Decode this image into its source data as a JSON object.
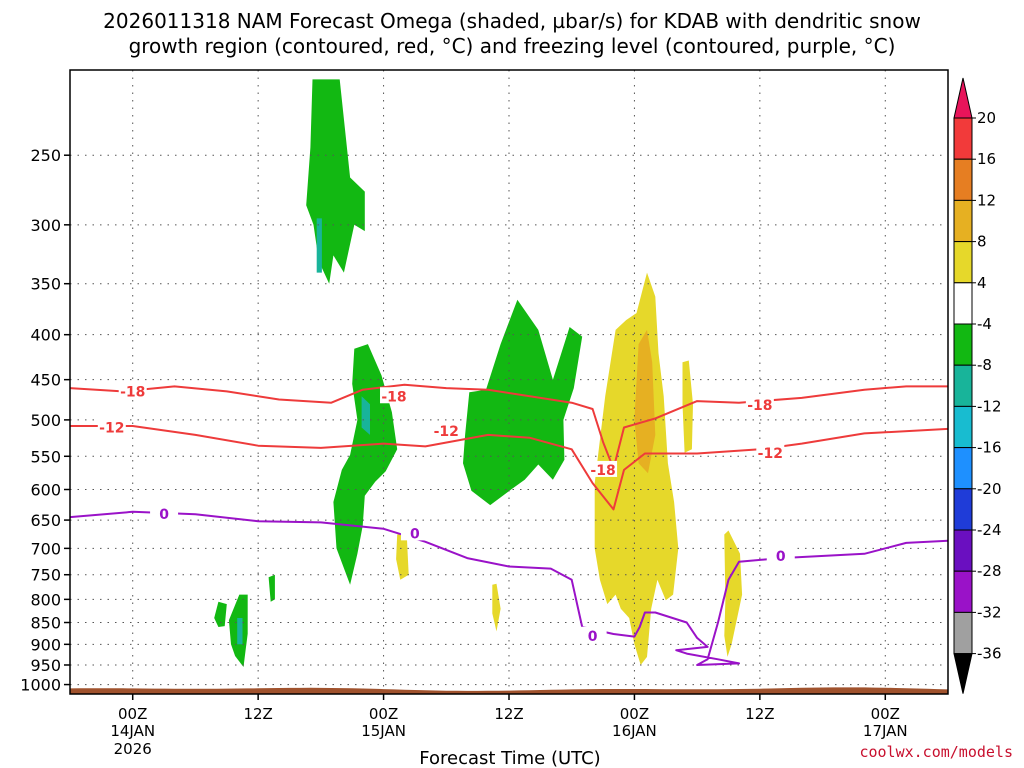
{
  "title": {
    "line1": "2026011318 NAM Forecast Omega (shaded, µbar/s) for KDAB with dendritic snow",
    "line2": "growth region (contoured, red, °C) and freezing level (contoured, purple, °C)"
  },
  "credit": "coolwx.com/models",
  "colors": {
    "contour_red": "#ee3b3b",
    "contour_purple": "#9a12c8",
    "terrain": "#a0522d",
    "grid": "#555555"
  },
  "chart_data": {
    "type": "heatmap",
    "ylabel": "",
    "xlabel": "Forecast Time (UTC)",
    "y_scale": "log-pressure",
    "y_ticks": [
      "250",
      "300",
      "350",
      "400",
      "450",
      "500",
      "550",
      "600",
      "650",
      "700",
      "750",
      "800",
      "850",
      "900",
      "950",
      "1000"
    ],
    "x_ticks": [
      {
        "hour": 6,
        "label": "00Z",
        "date": "14JAN",
        "year": "2026"
      },
      {
        "hour": 18,
        "label": "12Z",
        "date": "",
        "year": ""
      },
      {
        "hour": 30,
        "label": "00Z",
        "date": "15JAN",
        "year": ""
      },
      {
        "hour": 42,
        "label": "12Z",
        "date": "",
        "year": ""
      },
      {
        "hour": 54,
        "label": "00Z",
        "date": "16JAN",
        "year": ""
      },
      {
        "hour": 66,
        "label": "12Z",
        "date": "",
        "year": ""
      },
      {
        "hour": 78,
        "label": "00Z",
        "date": "17JAN",
        "year": ""
      }
    ],
    "x_range_hours": [
      0,
      84
    ],
    "y_range_hPa": [
      200,
      1025
    ],
    "colorbar": {
      "labels": [
        "20",
        "16",
        "12",
        "8",
        "4",
        "-4",
        "-8",
        "-12",
        "-16",
        "-20",
        "-24",
        "-28",
        "-32",
        "-36"
      ],
      "colors": [
        "#e8145a",
        "#f23a3a",
        "#e67e22",
        "#e6b022",
        "#e6d82a",
        "#ffffff",
        "#12b812",
        "#18b49a",
        "#18bcd0",
        "#1e90ff",
        "#1f3cd8",
        "#6a0fc0",
        "#9a12c8",
        "#a0a0a0",
        "#000000"
      ]
    },
    "contours": [
      {
        "name": "-18",
        "color": "#ee3b3b",
        "points": [
          [
            0,
            460
          ],
          [
            5,
            464
          ],
          [
            10,
            458
          ],
          [
            15,
            464
          ],
          [
            20,
            474
          ],
          [
            25,
            478
          ],
          [
            28,
            462
          ],
          [
            32,
            456
          ],
          [
            36,
            460
          ],
          [
            40,
            462
          ],
          [
            44,
            470
          ],
          [
            48,
            478
          ],
          [
            50,
            486
          ],
          [
            51,
            530
          ],
          [
            52,
            568
          ],
          [
            53,
            510
          ],
          [
            56,
            498
          ],
          [
            60,
            476
          ],
          [
            64,
            478
          ],
          [
            70,
            472
          ],
          [
            76,
            462
          ],
          [
            80,
            458
          ],
          [
            84,
            458
          ]
        ],
        "labels": [
          [
            6,
            464,
            "-18"
          ],
          [
            31,
            470,
            "-18"
          ],
          [
            66,
            481,
            "-18"
          ],
          [
            51,
            570,
            "-18"
          ]
        ]
      },
      {
        "name": "-12",
        "color": "#ee3b3b",
        "points": [
          [
            0,
            508
          ],
          [
            6,
            508
          ],
          [
            12,
            520
          ],
          [
            18,
            535
          ],
          [
            24,
            538
          ],
          [
            30,
            532
          ],
          [
            34,
            536
          ],
          [
            40,
            520
          ],
          [
            44,
            524
          ],
          [
            48,
            540
          ],
          [
            50,
            590
          ],
          [
            52,
            632
          ],
          [
            53,
            570
          ],
          [
            55,
            546
          ],
          [
            60,
            546
          ],
          [
            66,
            540
          ],
          [
            70,
            532
          ],
          [
            76,
            518
          ],
          [
            84,
            512
          ]
        ],
        "labels": [
          [
            4,
            510,
            "-12"
          ],
          [
            36,
            515,
            "-12"
          ],
          [
            67,
            545,
            "-12"
          ]
        ]
      },
      {
        "name": "0",
        "color": "#9a12c8",
        "points": [
          [
            0,
            645
          ],
          [
            6,
            636
          ],
          [
            12,
            640
          ],
          [
            18,
            652
          ],
          [
            24,
            654
          ],
          [
            30,
            665
          ],
          [
            34,
            688
          ],
          [
            38,
            718
          ],
          [
            42,
            734
          ],
          [
            46,
            738
          ],
          [
            48,
            760
          ],
          [
            49,
            860
          ],
          [
            52,
            876
          ],
          [
            54,
            882
          ],
          [
            54.5,
            860
          ],
          [
            55,
            828
          ],
          [
            56,
            828
          ],
          [
            59,
            850
          ],
          [
            60,
            885
          ],
          [
            61,
            906
          ],
          [
            58,
            914
          ],
          [
            59,
            922
          ],
          [
            62,
            936
          ],
          [
            64,
            946
          ],
          [
            60,
            950
          ],
          [
            61,
            936
          ],
          [
            62,
            850
          ],
          [
            63,
            760
          ],
          [
            64,
            725
          ],
          [
            68,
            718
          ],
          [
            76,
            710
          ],
          [
            80,
            690
          ],
          [
            84,
            686
          ]
        ],
        "labels": [
          [
            9,
            640,
            "0"
          ],
          [
            33,
            673,
            "0"
          ],
          [
            50,
            880,
            "0"
          ],
          [
            68,
            714,
            "0"
          ]
        ]
      }
    ],
    "omega_regions": [
      {
        "level": "-8",
        "points": [
          [
            23.2,
            205
          ],
          [
            25.8,
            205
          ],
          [
            26.8,
            265
          ],
          [
            28.2,
            275
          ],
          [
            28.2,
            305
          ],
          [
            27.2,
            300
          ],
          [
            26.2,
            340
          ],
          [
            25.2,
            325
          ],
          [
            24.8,
            350
          ],
          [
            23.8,
            330
          ],
          [
            23.3,
            300
          ],
          [
            22.6,
            285
          ],
          [
            23.0,
            245
          ]
        ]
      },
      {
        "level": "-8",
        "points": [
          [
            27.2,
            415
          ],
          [
            28.5,
            410
          ],
          [
            29.8,
            445
          ],
          [
            30.8,
            490
          ],
          [
            31.3,
            540
          ],
          [
            30.2,
            572
          ],
          [
            29.2,
            588
          ],
          [
            28.2,
            610
          ],
          [
            28.0,
            660
          ],
          [
            27.5,
            710
          ],
          [
            26.8,
            770
          ],
          [
            25.5,
            700
          ],
          [
            25.2,
            620
          ],
          [
            26.0,
            570
          ],
          [
            26.8,
            548
          ],
          [
            27.5,
            500
          ],
          [
            27.0,
            455
          ]
        ]
      },
      {
        "level": "-12",
        "points": [
          [
            27.9,
            470
          ],
          [
            28.7,
            480
          ],
          [
            28.7,
            520
          ],
          [
            27.9,
            510
          ]
        ]
      },
      {
        "level": "-12",
        "points": [
          [
            23.6,
            295
          ],
          [
            24.1,
            295
          ],
          [
            24.1,
            340
          ],
          [
            23.6,
            340
          ]
        ]
      },
      {
        "level": "-8",
        "points": [
          [
            38.2,
            465
          ],
          [
            39.8,
            462
          ],
          [
            41.2,
            410
          ],
          [
            42.8,
            365
          ],
          [
            44.8,
            395
          ],
          [
            46.2,
            450
          ],
          [
            47.8,
            392
          ],
          [
            49.0,
            402
          ],
          [
            48.2,
            460
          ],
          [
            47.2,
            500
          ],
          [
            47.3,
            555
          ],
          [
            46.2,
            585
          ],
          [
            44.8,
            562
          ],
          [
            43.5,
            585
          ],
          [
            42.2,
            600
          ],
          [
            40.2,
            625
          ],
          [
            38.4,
            602
          ],
          [
            37.6,
            560
          ],
          [
            37.8,
            520
          ]
        ]
      },
      {
        "level": "-8",
        "points": [
          [
            14.2,
            805
          ],
          [
            15.0,
            810
          ],
          [
            14.8,
            858
          ],
          [
            14.2,
            860
          ],
          [
            13.8,
            840
          ]
        ]
      },
      {
        "level": "-8",
        "points": [
          [
            15.2,
            845
          ],
          [
            16.2,
            790
          ],
          [
            17.0,
            790
          ],
          [
            17.0,
            875
          ],
          [
            16.6,
            955
          ],
          [
            15.8,
            928
          ],
          [
            15.4,
            900
          ]
        ]
      },
      {
        "level": "-12",
        "points": [
          [
            16.0,
            840
          ],
          [
            16.5,
            840
          ],
          [
            16.5,
            900
          ],
          [
            16.0,
            900
          ]
        ]
      },
      {
        "level": "-8",
        "points": [
          [
            19.0,
            755
          ],
          [
            19.6,
            750
          ],
          [
            19.6,
            800
          ],
          [
            19.2,
            805
          ]
        ]
      },
      {
        "level": "4",
        "points": [
          [
            50.2,
            590
          ],
          [
            51.2,
            470
          ],
          [
            52.2,
            395
          ],
          [
            53.2,
            385
          ],
          [
            54.2,
            378
          ],
          [
            55.2,
            340
          ],
          [
            56.0,
            362
          ],
          [
            56.3,
            420
          ],
          [
            56.8,
            470
          ],
          [
            57.2,
            560
          ],
          [
            57.8,
            620
          ],
          [
            58.2,
            700
          ],
          [
            57.7,
            790
          ],
          [
            57.0,
            802
          ],
          [
            56.2,
            760
          ],
          [
            55.6,
            820
          ],
          [
            55.2,
            930
          ],
          [
            54.6,
            950
          ],
          [
            54.0,
            900
          ],
          [
            53.5,
            840
          ],
          [
            52.7,
            820
          ],
          [
            52.2,
            790
          ],
          [
            51.4,
            810
          ],
          [
            50.7,
            760
          ],
          [
            50.2,
            700
          ]
        ]
      },
      {
        "level": "8",
        "points": [
          [
            54.4,
            410
          ],
          [
            55.2,
            395
          ],
          [
            55.7,
            430
          ],
          [
            56.0,
            520
          ],
          [
            55.3,
            575
          ],
          [
            54.4,
            560
          ],
          [
            54.0,
            500
          ]
        ]
      },
      {
        "level": "4",
        "points": [
          [
            58.6,
            430
          ],
          [
            59.2,
            428
          ],
          [
            59.6,
            480
          ],
          [
            59.5,
            540
          ],
          [
            58.8,
            545
          ],
          [
            58.6,
            480
          ]
        ]
      },
      {
        "level": "4",
        "points": [
          [
            62.6,
            675
          ],
          [
            63.0,
            668
          ],
          [
            64.1,
            710
          ],
          [
            64.3,
            790
          ],
          [
            63.3,
            900
          ],
          [
            62.9,
            930
          ],
          [
            62.6,
            880
          ],
          [
            62.7,
            800
          ]
        ]
      },
      {
        "level": "4",
        "points": [
          [
            31.3,
            675
          ],
          [
            32.2,
            670
          ],
          [
            32.4,
            750
          ],
          [
            31.6,
            760
          ],
          [
            31.2,
            720
          ]
        ]
      },
      {
        "level": "4",
        "points": [
          [
            40.4,
            770
          ],
          [
            40.8,
            768
          ],
          [
            41.2,
            820
          ],
          [
            40.8,
            870
          ],
          [
            40.4,
            830
          ]
        ]
      }
    ]
  }
}
